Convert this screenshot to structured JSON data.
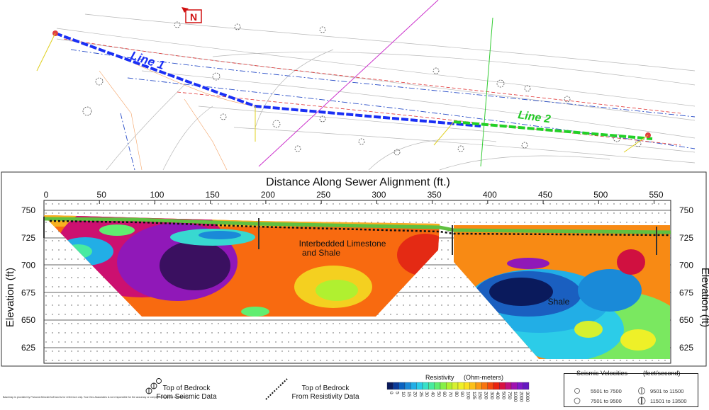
{
  "map": {
    "north_arrow": "N",
    "lines": [
      {
        "label": "Line 1",
        "color": "#1a2ff5"
      },
      {
        "label": "Line 2",
        "color": "#22d026"
      }
    ]
  },
  "section": {
    "title": "Distance Along Sewer Alignment (ft.)",
    "y_axis_label": "Elevation (ft)",
    "x_ticks": [
      "0",
      "50",
      "100",
      "150",
      "200",
      "250",
      "300",
      "350",
      "400",
      "450",
      "500",
      "550"
    ],
    "y_ticks": [
      "750",
      "725",
      "700",
      "675",
      "650",
      "625"
    ],
    "annotations": [
      "Interbedded Limestone",
      "and Shale",
      "Shale"
    ]
  },
  "legend": {
    "disclaimer": "Basemap is provided by Parsons Brinckerhoff and is for reference only. Tour Geo Associates is not responsible for the accuracy or completeness of this information.",
    "bedrock_seismic": [
      "Top of Bedrock",
      "From Seismic Data"
    ],
    "bedrock_resistivity": [
      "Top of Bedrock",
      "From Resistivity Data"
    ],
    "resistivity": {
      "title": "Resistivity",
      "units": "(Ohm-meters)",
      "ticks": [
        "0",
        "5",
        "10",
        "15",
        "20",
        "25",
        "30",
        "40",
        "50",
        "60",
        "70",
        "80",
        "90",
        "100",
        "125",
        "150",
        "200",
        "300",
        "400",
        "500",
        "750",
        "1000",
        "2000",
        "3000"
      ],
      "colors": [
        "#0a1a5c",
        "#0a3a9a",
        "#0a62c0",
        "#1a8ad8",
        "#22aee6",
        "#2ccce8",
        "#38e0c8",
        "#48eaa0",
        "#60ee70",
        "#86f048",
        "#b0f030",
        "#d6f030",
        "#eef028",
        "#fae020",
        "#fcc018",
        "#fb9a14",
        "#f87410",
        "#f54a10",
        "#ea2410",
        "#d81040",
        "#c01080",
        "#a010b0",
        "#8018c8",
        "#6418c0"
      ]
    },
    "seismic": {
      "title": "Seismic Velocities",
      "units": "(feet/second)",
      "ranges": [
        "5501  to  7500",
        "7501  to  9500",
        "9501  to  11500",
        "11501  to  13500"
      ]
    }
  }
}
